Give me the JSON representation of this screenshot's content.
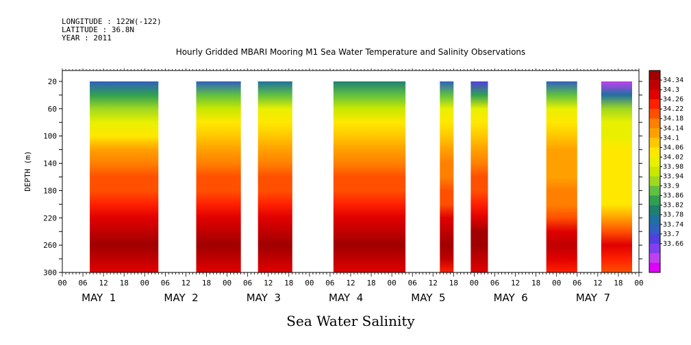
{
  "header": {
    "longitude": "LONGITUDE : 122W(-122)",
    "latitude": "LATITUDE : 36.8N",
    "year": "YEAR : 2011"
  },
  "chart_data": {
    "type": "heatmap",
    "title": "Hourly Gridded MBARI Mooring M1 Sea Water Temperature and Salinity Observations",
    "xlabel": "Sea Water Salinity",
    "ylabel": "DEPTH (m)",
    "y_inverted": true,
    "ylim": [
      300,
      4
    ],
    "xlim_hours": [
      0,
      168
    ],
    "y_ticks": [
      20,
      60,
      100,
      140,
      180,
      220,
      260,
      300
    ],
    "x_hour_tick_labels": [
      "00",
      "06",
      "12",
      "18",
      "00",
      "06",
      "12",
      "18",
      "00",
      "06",
      "12",
      "18",
      "00",
      "06",
      "12",
      "18",
      "00",
      "06",
      "12",
      "18",
      "00",
      "06",
      "12",
      "18",
      "00",
      "06",
      "12",
      "18",
      "00"
    ],
    "x_day_labels": [
      "MAY  1",
      "MAY  2",
      "MAY  3",
      "MAY  4",
      "MAY  5",
      "MAY  6",
      "MAY  7"
    ],
    "colorbar_levels": [
      "34.34",
      "34.3",
      "34.26",
      "34.22",
      "34.18",
      "34.14",
      "34.1",
      "34.06",
      "34.02",
      "33.98",
      "33.94",
      "33.9",
      "33.86",
      "33.82",
      "33.78",
      "33.74",
      "33.7",
      "33.66"
    ],
    "colorbar_colors": [
      "#a00000",
      "#c00000",
      "#e00000",
      "#ff2000",
      "#ff5000",
      "#ff8000",
      "#ffa000",
      "#ffc800",
      "#ffe800",
      "#e8f000",
      "#c8e800",
      "#a0d820",
      "#60c040",
      "#30a050",
      "#208070",
      "#2070a0",
      "#3060c0",
      "#5040e0",
      "#8040f0",
      "#c040f0",
      "#e000ff"
    ],
    "depth_profile_depths": [
      20,
      40,
      60,
      80,
      100,
      120,
      140,
      160,
      180,
      200,
      220,
      240,
      260,
      280,
      300
    ],
    "segments": [
      {
        "start_hour": 8,
        "end_hour": 28,
        "salinity_profile": [
          33.8,
          33.9,
          33.98,
          34.04,
          34.08,
          34.12,
          34.16,
          34.2,
          34.2,
          34.22,
          34.26,
          34.3,
          34.33,
          34.3,
          34.26
        ]
      },
      {
        "start_hour": 39,
        "end_hour": 52,
        "salinity_profile": [
          33.82,
          33.92,
          34.0,
          34.05,
          34.09,
          34.13,
          34.16,
          34.19,
          34.2,
          34.22,
          34.26,
          34.3,
          34.33,
          34.3,
          34.26
        ]
      },
      {
        "start_hour": 57,
        "end_hour": 67,
        "salinity_profile": [
          33.84,
          33.94,
          34.02,
          34.06,
          34.1,
          34.13,
          34.17,
          34.19,
          34.2,
          34.22,
          34.26,
          34.3,
          34.32,
          34.29,
          34.25
        ]
      },
      {
        "start_hour": 79,
        "end_hour": 100,
        "salinity_profile": [
          33.86,
          33.94,
          34.0,
          34.05,
          34.09,
          34.13,
          34.16,
          34.19,
          34.2,
          34.22,
          34.26,
          34.3,
          34.32,
          34.29,
          34.25
        ]
      },
      {
        "start_hour": 110,
        "end_hour": 114,
        "salinity_profile": [
          33.8,
          33.92,
          34.02,
          34.07,
          34.1,
          34.13,
          34.15,
          34.17,
          34.19,
          34.21,
          34.26,
          34.3,
          34.31,
          34.28,
          34.24
        ]
      },
      {
        "start_hour": 119,
        "end_hour": 124,
        "salinity_profile": [
          33.78,
          33.9,
          34.02,
          34.07,
          34.1,
          34.13,
          34.16,
          34.18,
          34.2,
          34.22,
          34.27,
          34.31,
          34.33,
          34.3,
          34.26
        ]
      },
      {
        "start_hour": 141,
        "end_hour": 150,
        "salinity_profile": [
          33.82,
          33.92,
          34.02,
          34.07,
          34.1,
          34.12,
          34.13,
          34.14,
          34.15,
          34.17,
          34.2,
          34.25,
          34.29,
          34.27,
          34.23
        ]
      },
      {
        "start_hour": 157,
        "end_hour": 166,
        "salinity_profile": [
          33.72,
          33.84,
          33.96,
          34.02,
          34.04,
          34.05,
          34.06,
          34.06,
          34.06,
          34.08,
          34.14,
          34.2,
          34.26,
          34.24,
          34.2
        ]
      }
    ]
  }
}
